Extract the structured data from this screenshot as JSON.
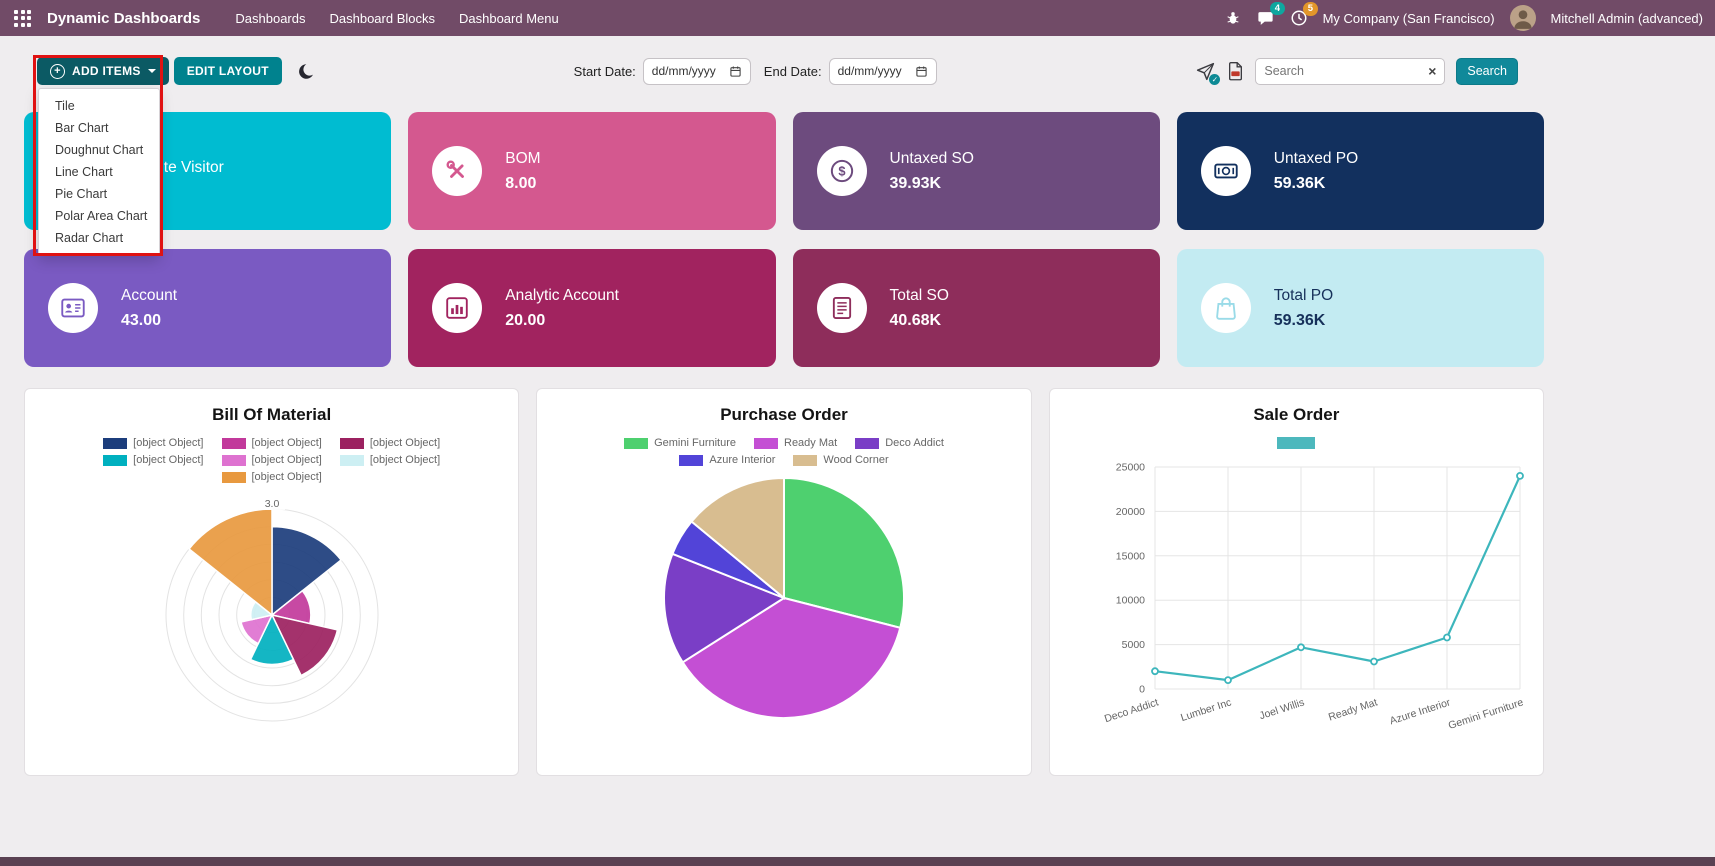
{
  "navbar": {
    "app_title": "Dynamic Dashboards",
    "menu_items": [
      "Dashboards",
      "Dashboard Blocks",
      "Dashboard Menu"
    ],
    "messages_badge": "4",
    "activities_badge": "5",
    "company": "My Company (San Francisco)",
    "user": "Mitchell Admin (advanced)"
  },
  "toolbar": {
    "add_items_label": "ADD ITEMS",
    "edit_layout_label": "EDIT LAYOUT",
    "dropdown_items": [
      "Tile",
      "Bar Chart",
      "Doughnut Chart",
      "Line Chart",
      "Pie Chart",
      "Polar Area Chart",
      "Radar Chart"
    ],
    "start_date_label": "Start Date:",
    "end_date_label": "End Date:",
    "date_placeholder": "dd/mm/yyyy",
    "search_placeholder": "Search",
    "search_clear": "×",
    "search_button_label": "Search"
  },
  "annotation": {
    "highlight_color": "#e01212"
  },
  "tiles": [
    {
      "title": "Website Visitor",
      "value": "",
      "bg": "#00bcd1",
      "text_color": "#ffffff",
      "icon": "globe-icon"
    },
    {
      "title": "BOM",
      "value": "8.00",
      "bg": "#d4588f",
      "text_color": "#ffffff",
      "icon": "tools-icon"
    },
    {
      "title": "Untaxed SO",
      "value": "39.93K",
      "bg": "#6d4b7e",
      "text_color": "#ffffff",
      "icon": "dollar-coin-icon"
    },
    {
      "title": "Untaxed PO",
      "value": "59.36K",
      "bg": "#12305e",
      "text_color": "#ffffff",
      "icon": "money-icon"
    },
    {
      "title": "Account",
      "value": "43.00",
      "bg": "#7a5ac2",
      "text_color": "#ffffff",
      "icon": "id-card-icon"
    },
    {
      "title": "Analytic Account",
      "value": "20.00",
      "bg": "#a1235f",
      "text_color": "#ffffff",
      "icon": "bar-chart-icon"
    },
    {
      "title": "Total SO",
      "value": "40.68K",
      "bg": "#8e2d5b",
      "text_color": "#ffffff",
      "icon": "document-icon"
    },
    {
      "title": "Total PO",
      "value": "59.36K",
      "bg": "#c3ebf2",
      "text_color": "#16305a",
      "icon": "bag-icon",
      "icon_color": "#9adbe8"
    }
  ],
  "chart_data": [
    {
      "type": "polar_area",
      "title": "Bill Of Material",
      "labels": [
        "[object Object]",
        "[object Object]",
        "[object Object]",
        "[object Object]",
        "[object Object]",
        "[object Object]",
        "[object Object]"
      ],
      "values": [
        2.5,
        1.1,
        1.9,
        1.4,
        0.9,
        0.6,
        3.0
      ],
      "colors": [
        "#1c3d7c",
        "#c2399b",
        "#9c2160",
        "#00b0bf",
        "#de72d0",
        "#cdeff3",
        "#e8993f"
      ],
      "rmax": 3.0,
      "tick_step": 0.5,
      "visible_tick_label": "3.0",
      "legend_rows": [
        3,
        3,
        1
      ],
      "legend_position": "top",
      "grid": true
    },
    {
      "type": "pie",
      "title": "Purchase Order",
      "labels": [
        "Gemini Furniture",
        "Ready Mat",
        "Deco Addict",
        "Azure Interior",
        "Wood Corner"
      ],
      "values": [
        29,
        37,
        15,
        5,
        14
      ],
      "colors": [
        "#4ed06f",
        "#c44fd4",
        "#7a3ec6",
        "#5244d8",
        "#d8bd90"
      ],
      "legend_rows": [
        3,
        2
      ],
      "legend_position": "top",
      "grid": false
    },
    {
      "type": "line",
      "title": "Sale Order",
      "categories": [
        "Deco Addict",
        "Lumber Inc",
        "Joel Willis",
        "Ready Mat",
        "Azure Interior",
        "Gemini Furniture"
      ],
      "values": [
        2000,
        1000,
        4700,
        3100,
        5800,
        24000
      ],
      "color": "#3db6bc",
      "ylim": [
        0,
        25000
      ],
      "ytick_step": 5000,
      "legend_labels": [
        ""
      ],
      "legend_colors": [
        "#4db8bd"
      ],
      "legend_rows": [
        1
      ],
      "legend_position": "top",
      "grid": true
    }
  ]
}
